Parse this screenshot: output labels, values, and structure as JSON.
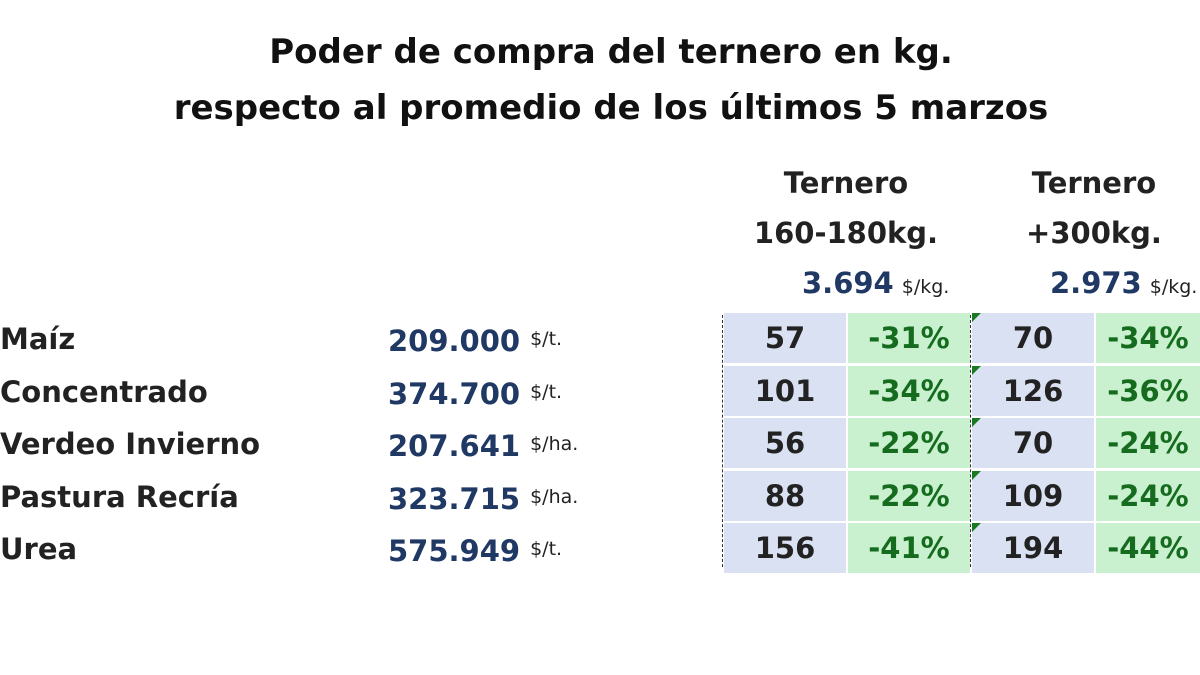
{
  "title": {
    "line1": "Poder de compra del ternero en kg.",
    "line2": "respecto al promedio de los últimos 5 marzos"
  },
  "columns": [
    {
      "head1": "Ternero",
      "head2": "160-180kg.",
      "price": "3.694",
      "price_unit": "$/kg."
    },
    {
      "head1": "Ternero",
      "head2": "+300kg.",
      "price": "2.973",
      "price_unit": "$/kg."
    }
  ],
  "colors": {
    "kg_cell_bg": "#dae1f3",
    "pct_cell_bg": "#c9f0cf",
    "pct_text": "#166c1e",
    "price_text": "#1f3864"
  },
  "chart_data": {
    "type": "table",
    "title": "Poder de compra del ternero en kg. respecto al promedio de los últimos 5 marzos",
    "rows": [
      {
        "label": "Maíz",
        "price": "209.000",
        "unit": "$/t.",
        "kg1": "57",
        "pct1": "-31%",
        "kg2": "70",
        "pct2": "-34%"
      },
      {
        "label": "Concentrado",
        "price": "374.700",
        "unit": "$/t.",
        "kg1": "101",
        "pct1": "-34%",
        "kg2": "126",
        "pct2": "-36%"
      },
      {
        "label": "Verdeo Invierno",
        "price": "207.641",
        "unit": "$/ha.",
        "kg1": "56",
        "pct1": "-22%",
        "kg2": "70",
        "pct2": "-24%"
      },
      {
        "label": "Pastura Recría",
        "price": "323.715",
        "unit": "$/ha.",
        "kg1": "88",
        "pct1": "-22%",
        "kg2": "109",
        "pct2": "-24%"
      },
      {
        "label": "Urea",
        "price": "575.949",
        "unit": "$/t.",
        "kg1": "156",
        "pct1": "-41%",
        "kg2": "194",
        "pct2": "-44%"
      }
    ]
  }
}
